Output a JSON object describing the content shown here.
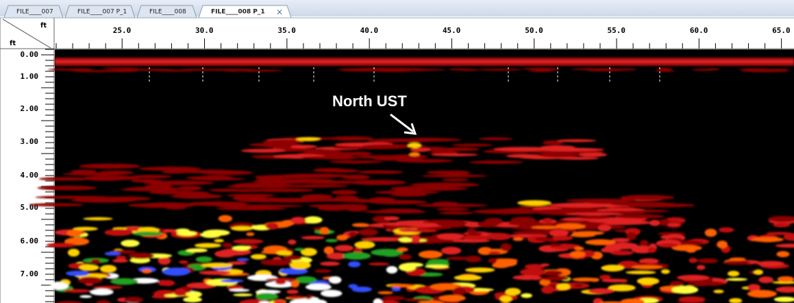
{
  "tabs": [
    "FILE____007",
    "FILE____007 P_1",
    "FILE____008",
    "FILE____008 P_1"
  ],
  "ruler": {
    "x_unit": "ft",
    "y_unit": "ft",
    "x_labels": [
      "25.0",
      "30.0",
      "35.0",
      "40.0",
      "45.0",
      "50.0",
      "55.0",
      "60.0",
      "65.0"
    ],
    "y_labels": [
      "0.00",
      "1.00",
      "2.00",
      "3.00",
      "4.00",
      "5.00",
      "6.00",
      "7.00"
    ]
  },
  "annotation": "North UST"
}
